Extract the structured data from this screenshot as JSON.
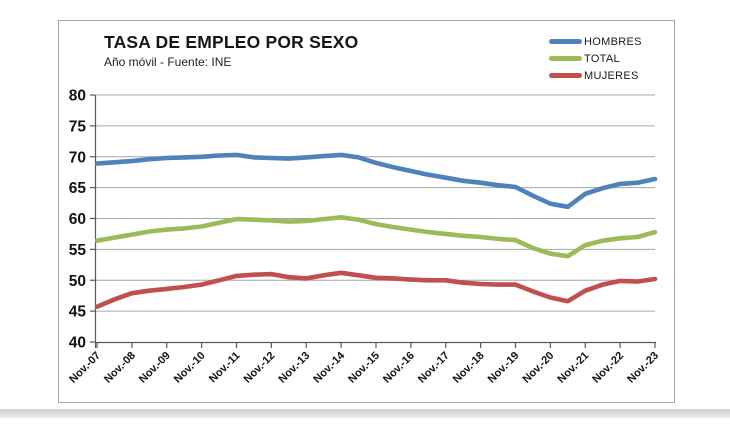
{
  "page": {
    "title": "TASA DE EMPLEO POR SEXO",
    "subtitle": "Año móvil - Fuente: INE"
  },
  "colors": {
    "hombres": "#4f81bd",
    "total": "#9bbb59",
    "mujeres": "#c0504d",
    "gridline": "#a6a6a6",
    "axis": "#595959",
    "text": "#1a1a1a"
  },
  "chart_data": {
    "type": "line",
    "title": "TASA DE EMPLEO POR SEXO",
    "subtitle": "Año móvil - Fuente: INE",
    "ylim": [
      40,
      80
    ],
    "y_ticks": [
      40,
      45,
      50,
      55,
      60,
      65,
      70,
      75,
      80
    ],
    "grid": true,
    "legend_position": "top-right",
    "sampling": "2 points per year (May & Nov); first point Nov-07, last point Nov-23; x tick labels mark every November",
    "x_tick_labels": [
      "Nov.-07",
      "Nov.-08",
      "Nov.-09",
      "Nov.-10",
      "Nov.-11",
      "Nov.-12",
      "Nov.-13",
      "Nov.-14",
      "Nov.-15",
      "Nov.-16",
      "Nov.-17",
      "Nov.-18",
      "Nov.-19",
      "Nov.-20",
      "Nov.-21",
      "Nov.-22",
      "Nov.-23"
    ],
    "series": [
      {
        "name": "HOMBRES",
        "key": "hombres",
        "color": "#4f81bd",
        "values": [
          68.9,
          69.1,
          69.3,
          69.6,
          69.8,
          69.9,
          70.0,
          70.2,
          70.3,
          69.9,
          69.8,
          69.7,
          69.9,
          70.1,
          70.3,
          69.9,
          69.0,
          68.3,
          67.7,
          67.1,
          66.6,
          66.1,
          65.8,
          65.4,
          65.1,
          63.7,
          62.4,
          61.9,
          64.0,
          64.9,
          65.6,
          65.8,
          66.4
        ]
      },
      {
        "name": "TOTAL",
        "key": "total",
        "color": "#9bbb59",
        "values": [
          56.4,
          56.9,
          57.4,
          57.9,
          58.2,
          58.4,
          58.7,
          59.3,
          59.9,
          59.8,
          59.7,
          59.5,
          59.6,
          59.9,
          60.2,
          59.8,
          59.1,
          58.6,
          58.2,
          57.8,
          57.5,
          57.2,
          57.0,
          56.7,
          56.5,
          55.2,
          54.3,
          53.9,
          55.7,
          56.4,
          56.8,
          57.0,
          57.8
        ]
      },
      {
        "name": "MUJERES",
        "key": "mujeres",
        "color": "#c0504d",
        "values": [
          45.7,
          46.9,
          47.9,
          48.3,
          48.6,
          48.9,
          49.3,
          50.0,
          50.7,
          50.9,
          51.0,
          50.5,
          50.3,
          50.8,
          51.2,
          50.8,
          50.4,
          50.3,
          50.1,
          50.0,
          50.0,
          49.6,
          49.4,
          49.3,
          49.3,
          48.2,
          47.2,
          46.6,
          48.3,
          49.3,
          49.9,
          49.8,
          50.2
        ]
      }
    ]
  }
}
